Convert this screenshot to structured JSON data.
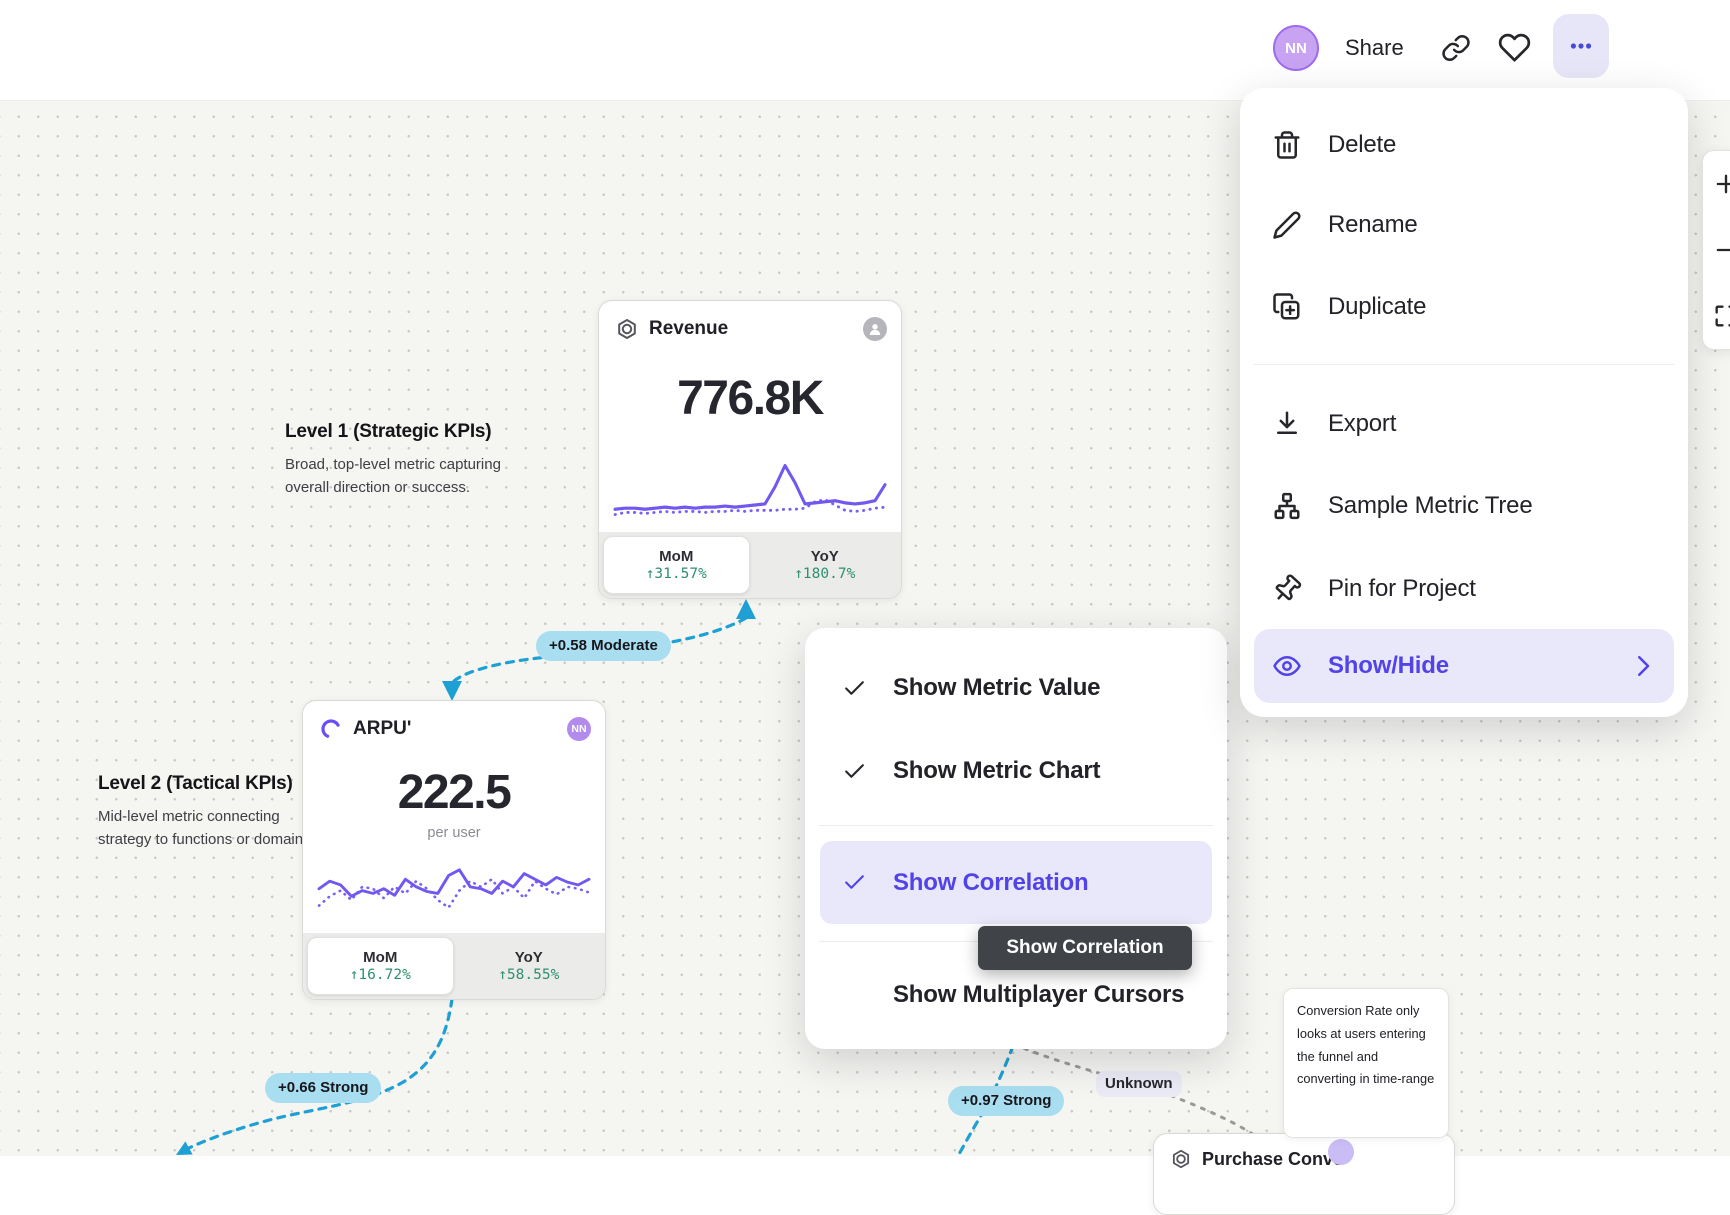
{
  "colors": {
    "accent": "#5243e8",
    "highlight_bg": "#e9e8fa",
    "connector_blue": "#1ea0d5",
    "connector_gray": "#9a9a98",
    "badge_bg": "#a9def1",
    "positive_green": "#2f8f72",
    "tooltip_bg": "#404449",
    "avatar_purple": "#c7a3f2"
  },
  "header": {
    "avatar_initials": "NN",
    "share_label": "Share"
  },
  "zoom_toolbar": {
    "buttons": [
      "zoom-in",
      "zoom-out",
      "fit-view"
    ]
  },
  "context_menu": {
    "items": [
      {
        "label": "Delete",
        "icon": "trash-icon"
      },
      {
        "label": "Rename",
        "icon": "pencil-icon"
      },
      {
        "label": "Duplicate",
        "icon": "duplicate-icon"
      },
      {
        "label": "Export",
        "icon": "download-icon"
      },
      {
        "label": "Sample Metric Tree",
        "icon": "metric-tree-icon"
      },
      {
        "label": "Pin for Project",
        "icon": "pin-icon"
      },
      {
        "label": "Show/Hide",
        "icon": "eye-icon",
        "active": true,
        "has_submenu": true
      }
    ]
  },
  "view_menu": {
    "items": [
      {
        "label": "Show Metric Value",
        "checked": true
      },
      {
        "label": "Show Metric Chart",
        "checked": true
      },
      {
        "label": "Show Correlation",
        "checked": true,
        "active": true
      },
      {
        "label": "Show Multiplayer Cursors",
        "checked": false
      }
    ]
  },
  "tooltip": {
    "label": "Show Correlation"
  },
  "annotations": {
    "level1": {
      "title": "Level 1 (Strategic KPIs)",
      "desc_line1": "Broad, top-level metric capturing",
      "desc_line2": "overall direction or success."
    },
    "level2": {
      "title": "Level 2 (Tactical KPIs)",
      "desc_line1": "Mid-level metric connecting",
      "desc_line2": "strategy to functions or domains."
    }
  },
  "correlations": {
    "rev_arpu": "+0.58 Moderate",
    "arpu_left": "+0.66 Strong",
    "bottom": "+0.97 Strong",
    "unknown": "Unknown"
  },
  "cards": {
    "revenue": {
      "title": "Revenue",
      "value": "776.8K",
      "mom_label": "MoM",
      "mom_change": "↑31.57%",
      "yoy_label": "YoY",
      "yoy_change": "↑180.7%"
    },
    "arpu": {
      "title": "ARPU'",
      "value": "222.5",
      "unit": "per user",
      "avatar_initials": "NN",
      "mom_label": "MoM",
      "mom_change": "↑16.72%",
      "yoy_label": "YoY",
      "yoy_change": "↑58.55%"
    },
    "purchase": {
      "title": "Purchase Conversion R"
    }
  },
  "note": {
    "lines": [
      "Conversion Rate only",
      "looks at users entering",
      "the funnel and",
      "converting in time-range"
    ]
  },
  "chart_data": [
    {
      "type": "line",
      "name": "revenue-sparkline",
      "axes": false,
      "note": "decorative sparkline; values are y positions in a 0-60 viewBox (lower value = higher point)",
      "series": [
        {
          "name": "current",
          "values": [
            49,
            48,
            48,
            49,
            48,
            47,
            48,
            47,
            48,
            47,
            47,
            46,
            47,
            46,
            45,
            44,
            28,
            8,
            24,
            44,
            43,
            42,
            41,
            43,
            44,
            43,
            41,
            26
          ]
        },
        {
          "name": "comparison",
          "values": [
            54,
            52,
            52,
            53,
            52,
            51,
            52,
            51,
            51,
            52,
            51,
            51,
            50,
            51,
            50,
            50,
            50,
            49,
            49,
            48,
            42,
            40,
            45,
            50,
            51,
            50,
            48,
            47
          ]
        }
      ]
    },
    {
      "type": "line",
      "name": "arpu-sparkline",
      "axes": false,
      "note": "decorative sparkline; values are y positions in a 0-70 viewBox",
      "series": [
        {
          "name": "current",
          "values": [
            40,
            32,
            36,
            48,
            42,
            45,
            40,
            47,
            30,
            38,
            43,
            45,
            26,
            20,
            38,
            40,
            45,
            32,
            38,
            24,
            30,
            36,
            28,
            33,
            36,
            30
          ]
        },
        {
          "name": "comparison",
          "values": [
            58,
            48,
            42,
            52,
            38,
            40,
            50,
            38,
            45,
            32,
            40,
            52,
            60,
            42,
            32,
            38,
            30,
            45,
            38,
            50,
            32,
            40,
            46,
            38,
            40,
            44
          ]
        }
      ]
    }
  ]
}
